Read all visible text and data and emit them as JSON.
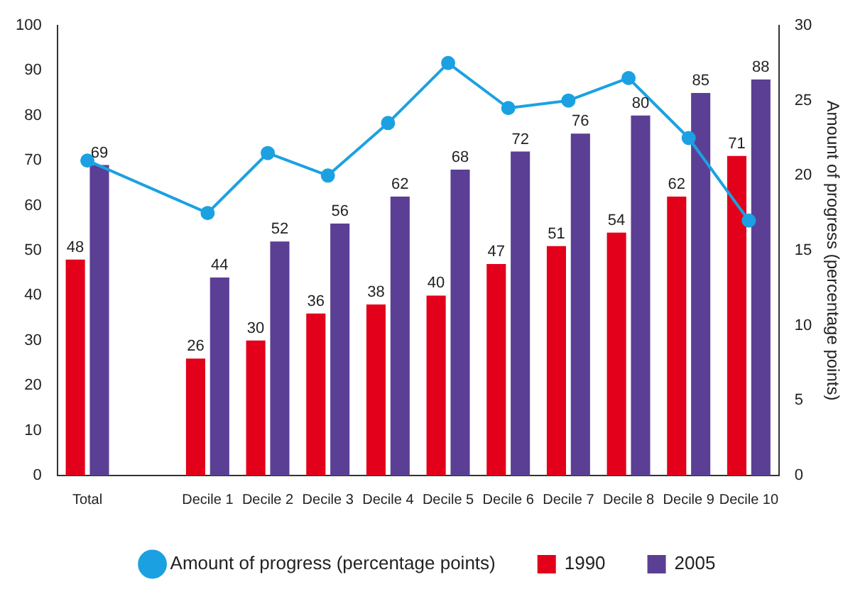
{
  "chart_data": {
    "type": "bar",
    "categories": [
      "Total",
      null,
      "Decile 1",
      "Decile 2",
      "Decile 3",
      "Decile 4",
      "Decile 5",
      "Decile 6",
      "Decile 7",
      "Decile 8",
      "Decile 9",
      "Decile 10"
    ],
    "series": [
      {
        "name": "1990",
        "color": "#e2001a",
        "values": [
          48,
          null,
          26,
          30,
          36,
          38,
          40,
          47,
          51,
          54,
          62,
          71
        ],
        "value_labels": [
          "48",
          null,
          "26",
          "30",
          "36",
          "38",
          "40",
          "47",
          "51",
          "54",
          "62",
          "71"
        ]
      },
      {
        "name": "2005",
        "color": "#5b3f95",
        "values": [
          69,
          null,
          44,
          52,
          56,
          62,
          68,
          72,
          76,
          80,
          85,
          88
        ],
        "value_labels": [
          "69",
          null,
          "44",
          "52",
          "56",
          "62",
          "68",
          "72",
          "76",
          "80",
          "85",
          "88"
        ]
      },
      {
        "name": "Amount of progress (percentage points)",
        "type": "line",
        "axis": "y2",
        "color": "#1ba1e2",
        "marker": "circle",
        "values": [
          21,
          null,
          17.5,
          21.5,
          20,
          23.5,
          27.5,
          24.5,
          25,
          26.5,
          22.5,
          17
        ]
      }
    ],
    "y2label": "Amount of progress (percentage points)",
    "ylim": [
      0,
      100
    ],
    "yticks": [
      0,
      10,
      20,
      30,
      40,
      50,
      60,
      70,
      80,
      90,
      100
    ],
    "y2lim": [
      0,
      30
    ],
    "y2ticks": [
      0,
      5,
      10,
      15,
      20,
      25,
      30
    ],
    "grid": false,
    "legend": "bottom"
  }
}
